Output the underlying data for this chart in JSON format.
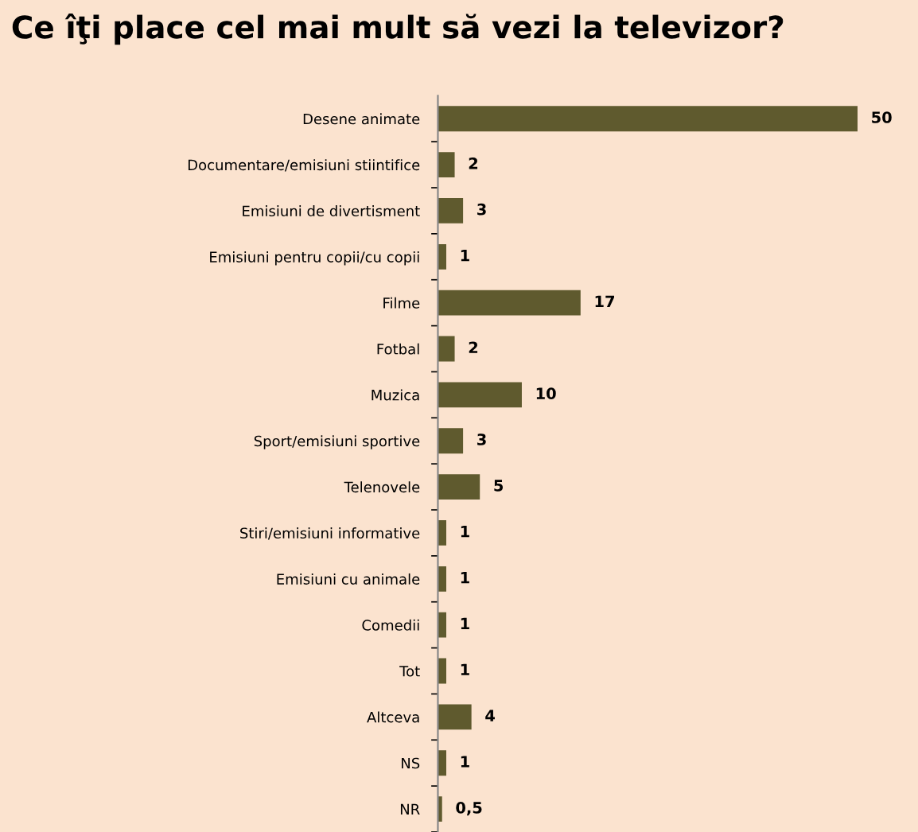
{
  "chart_data": {
    "type": "bar",
    "orientation": "horizontal",
    "title": "Ce îţi place cel mai mult să vezi la televizor?",
    "categories": [
      "Desene animate",
      "Documentare/emisiuni stiintifice",
      "Emisiuni de divertisment",
      "Emisiuni pentru copii/cu copii",
      "Filme",
      "Fotbal",
      "Muzica",
      "Sport/emisiuni sportive",
      "Telenovele",
      "Stiri/emisiuni informative",
      "Emisiuni cu animale",
      "Comedii",
      "Tot",
      "Altceva",
      "NS",
      "NR"
    ],
    "values": [
      50,
      2,
      3,
      1,
      17,
      2,
      10,
      3,
      5,
      1,
      1,
      1,
      1,
      4,
      1,
      0.5
    ],
    "value_labels": [
      "50",
      "2",
      "3",
      "1",
      "17",
      "2",
      "10",
      "3",
      "5",
      "1",
      "1",
      "1",
      "1",
      "4",
      "1",
      "0,5"
    ],
    "color": "#5f5a2e",
    "grid": false,
    "legend": false
  }
}
